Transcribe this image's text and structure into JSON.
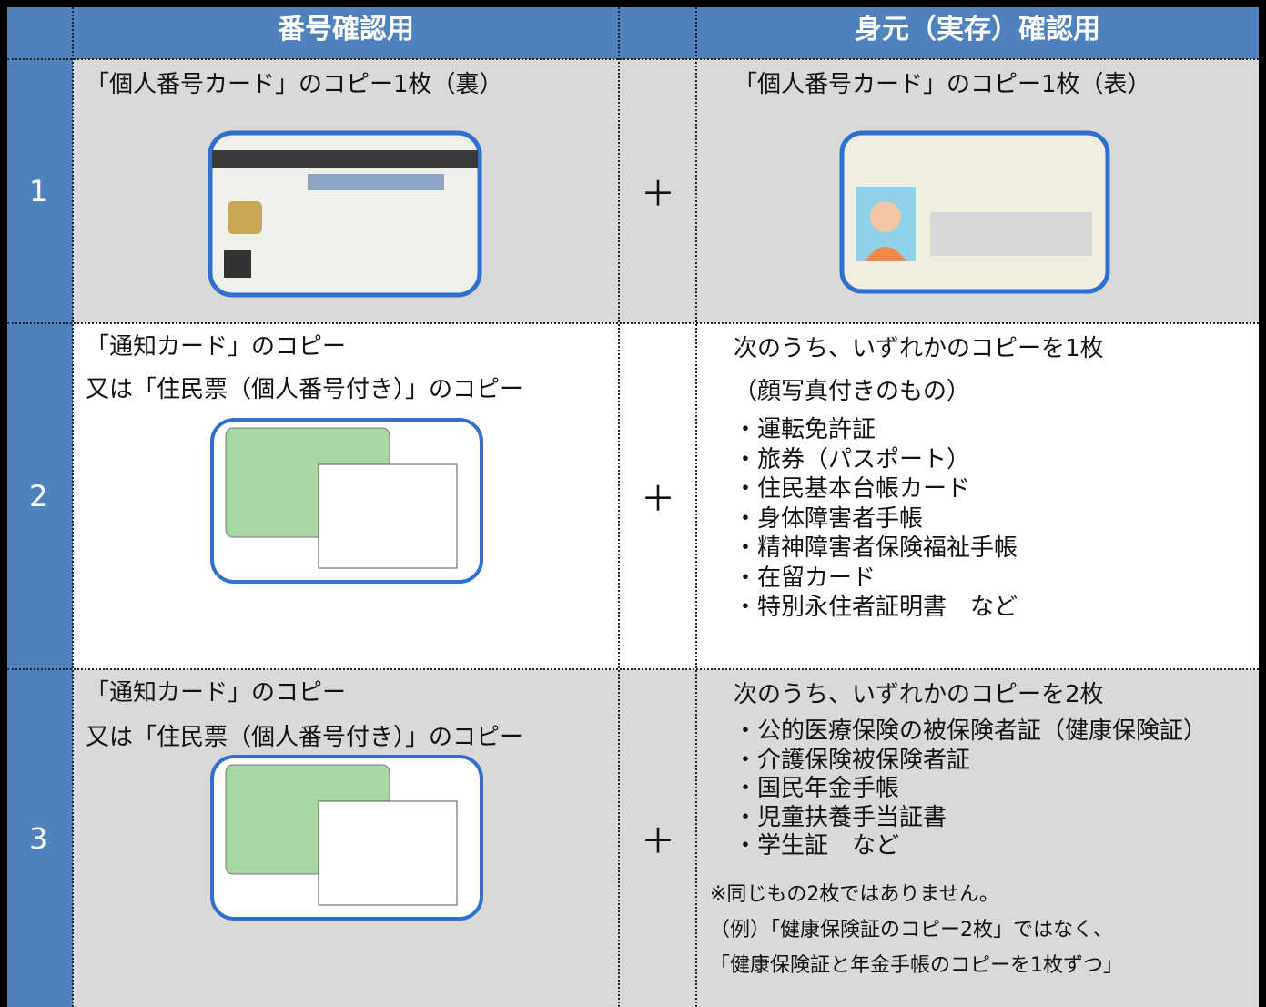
{
  "table": {
    "header": [
      "番号確認用",
      "身元（実存）確認用"
    ],
    "rows": [
      {
        "number": "1",
        "plus": "＋",
        "left": [
          "「個人番号カード」のコピー1枚（裏）"
        ],
        "right": {
          "lines": [
            "「個人番号カード」のコピー1枚（表）"
          ]
        }
      },
      {
        "number": "2",
        "plus": "＋",
        "left": [
          "「通知カード」のコピー",
          "又は「住民票（個人番号付き）」のコピー"
        ],
        "right": {
          "lines": [
            "次のうち、いずれかのコピーを1枚",
            "（顔写真付きのもの）"
          ],
          "items": [
            "・運転免許証",
            "・旅券（パスポート）",
            "・住民基本台帳カード",
            "・身体障害者手帳",
            "・精神障害者保険福祉手帳",
            "・在留カード",
            "・特別永住者証明書　など"
          ]
        }
      },
      {
        "number": "3",
        "plus": "＋",
        "left": [
          "「通知カード」のコピー",
          "又は「住民票（個人番号付き）」のコピー"
        ],
        "right": {
          "lines": [
            "次のうち、いずれかのコピーを2枚"
          ],
          "items": [
            "・公的医療保険の被保険者証（健康保険証）",
            "・介護保険被保険者証",
            "・国民年金手帳",
            "・児童扶養手当証書",
            "・学生証　など"
          ],
          "notes": [
            "※同じもの2枚ではありません。",
            "（例）「健康保険証のコピー2枚」ではなく、",
            "「健康保険証と年金手帳のコピーを1枚ずつ」"
          ]
        }
      }
    ]
  }
}
